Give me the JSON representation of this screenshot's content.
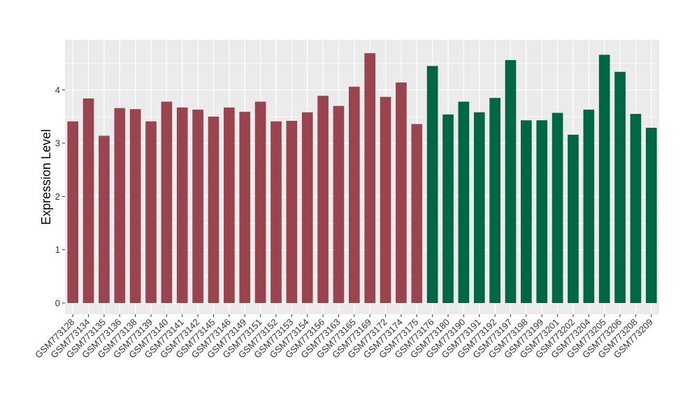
{
  "chart_data": {
    "type": "bar",
    "title": "",
    "xlabel": "",
    "ylabel": "Expression Level",
    "ylim": [
      0,
      4.9
    ],
    "yticks": [
      0,
      1,
      2,
      3,
      4
    ],
    "grid": true,
    "legend": "none",
    "colors": {
      "group1": "#9a4450",
      "group2": "#006644",
      "panel": "#ebebeb",
      "grid": "#ffffff"
    },
    "categories": [
      "GSM773128",
      "GSM773134",
      "GSM773135",
      "GSM773136",
      "GSM773138",
      "GSM773139",
      "GSM773140",
      "GSM773141",
      "GSM773142",
      "GSM773145",
      "GSM773146",
      "GSM773149",
      "GSM773151",
      "GSM773152",
      "GSM773153",
      "GSM773154",
      "GSM773156",
      "GSM773163",
      "GSM773165",
      "GSM773169",
      "GSM773172",
      "GSM773174",
      "GSM773175",
      "GSM773176",
      "GSM773180",
      "GSM773190",
      "GSM773191",
      "GSM773192",
      "GSM773197",
      "GSM773198",
      "GSM773199",
      "GSM773201",
      "GSM773202",
      "GSM773204",
      "GSM773205",
      "GSM773206",
      "GSM773208",
      "GSM773209"
    ],
    "values": [
      3.41,
      3.84,
      3.14,
      3.66,
      3.64,
      3.41,
      3.78,
      3.67,
      3.63,
      3.5,
      3.67,
      3.59,
      3.78,
      3.41,
      3.42,
      3.58,
      3.89,
      3.7,
      4.06,
      4.69,
      3.87,
      4.14,
      3.36,
      4.45,
      3.54,
      3.78,
      3.58,
      3.85,
      4.56,
      3.43,
      3.43,
      3.57,
      3.16,
      3.63,
      4.66,
      4.34,
      3.55,
      3.29
    ],
    "groups": [
      1,
      1,
      1,
      1,
      1,
      1,
      1,
      1,
      1,
      1,
      1,
      1,
      1,
      1,
      1,
      1,
      1,
      1,
      1,
      1,
      1,
      1,
      1,
      2,
      2,
      2,
      2,
      2,
      2,
      2,
      2,
      2,
      2,
      2,
      2,
      2,
      2,
      2
    ]
  }
}
